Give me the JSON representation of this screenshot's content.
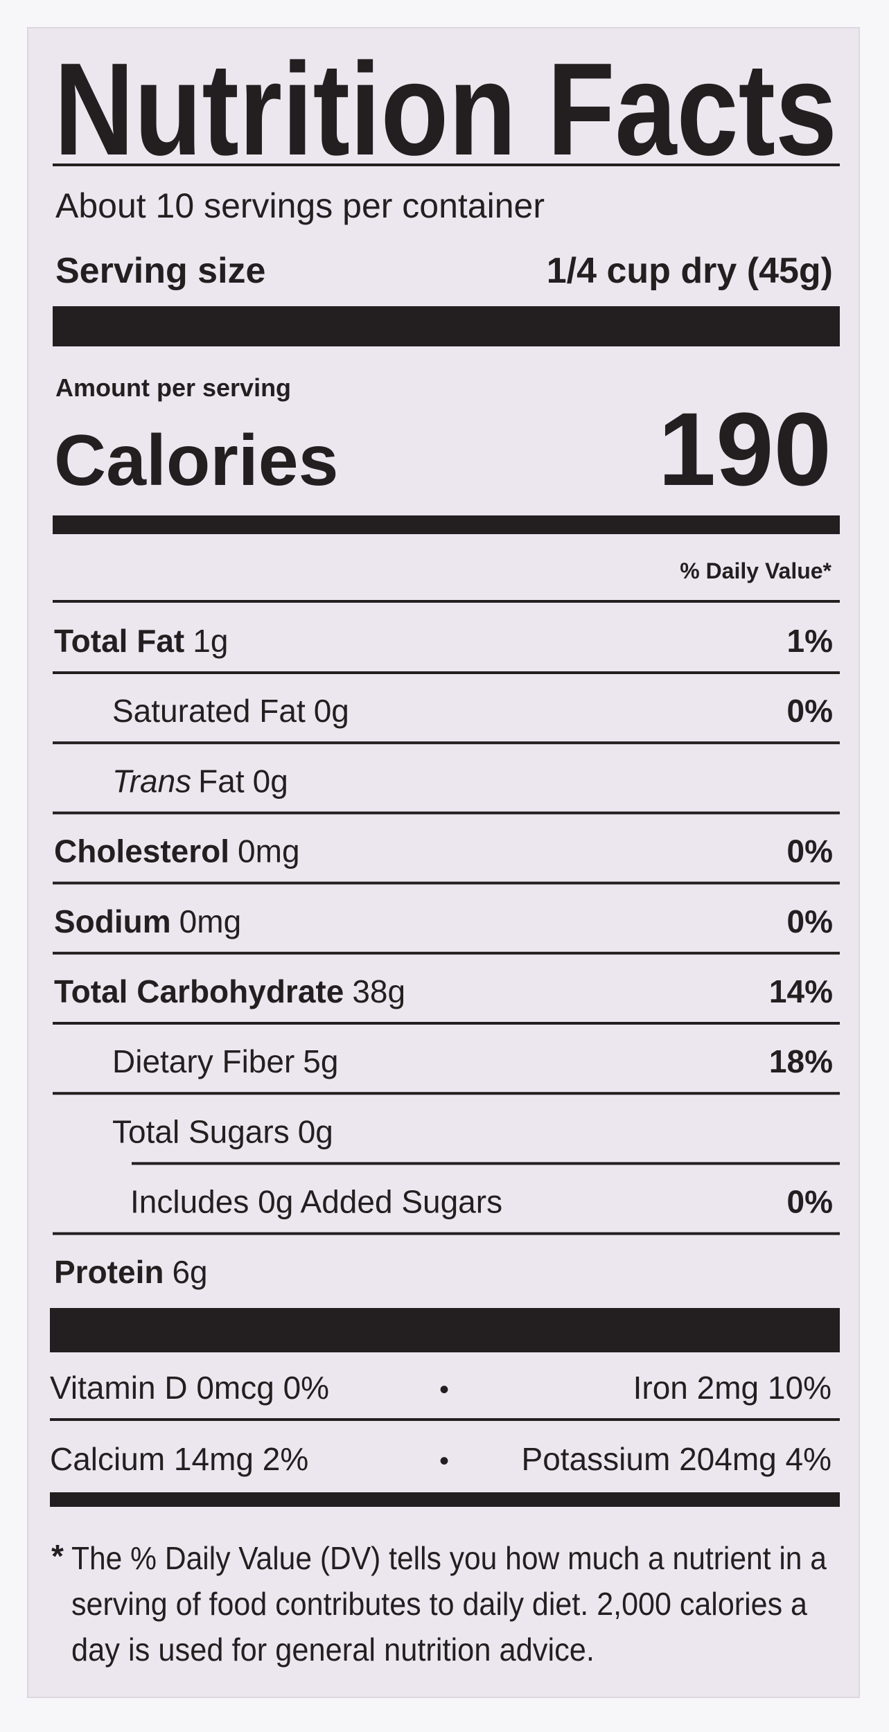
{
  "label": {
    "title": "Nutrition Facts",
    "servings": "About 10 servings per container",
    "serving_size": {
      "label": "Serving size",
      "value": "1/4 cup dry (45g)"
    },
    "amount_per_serving": "Amount per serving",
    "calories": {
      "label": "Calories",
      "value": "190"
    },
    "daily_value_header": "% Daily Value*",
    "nutrients": [
      {
        "name": "Total Fat",
        "amount": "1g",
        "dv": "1%",
        "sub": [
          {
            "name": "Saturated Fat",
            "amount": "0g",
            "dv": "0%"
          },
          {
            "name_italic": "Trans",
            "name": "Fat",
            "amount": "0g"
          }
        ]
      },
      {
        "name": "Cholesterol",
        "amount": "0mg",
        "dv": "0%"
      },
      {
        "name": "Sodium",
        "amount": "0mg",
        "dv": "0%"
      },
      {
        "name": "Total Carbohydrate",
        "amount": "38g",
        "dv": "14%",
        "sub": [
          {
            "name": "Dietary Fiber",
            "amount": "5g",
            "dv": "18%"
          },
          {
            "name": "Total Sugars",
            "amount": "0g",
            "sub": [
              {
                "name": "Includes 0g Added Sugars",
                "dv": "0%"
              }
            ]
          }
        ]
      },
      {
        "name": "Protein",
        "amount": "6g"
      }
    ],
    "vitamins": [
      {
        "left": "Vitamin D 0mcg 0%",
        "separator": "•",
        "right": "Iron 2mg 10%"
      },
      {
        "left": "Calcium 14mg 2%",
        "separator": "•",
        "right": "Potassium 204mg 4%"
      }
    ],
    "footnote": {
      "marker": "*",
      "lines": [
        "The % Daily Value (DV) tells you how much a nutrient in a",
        "serving of food contributes to daily diet. 2,000 calories a",
        "day is used for general nutrition advice."
      ]
    }
  }
}
